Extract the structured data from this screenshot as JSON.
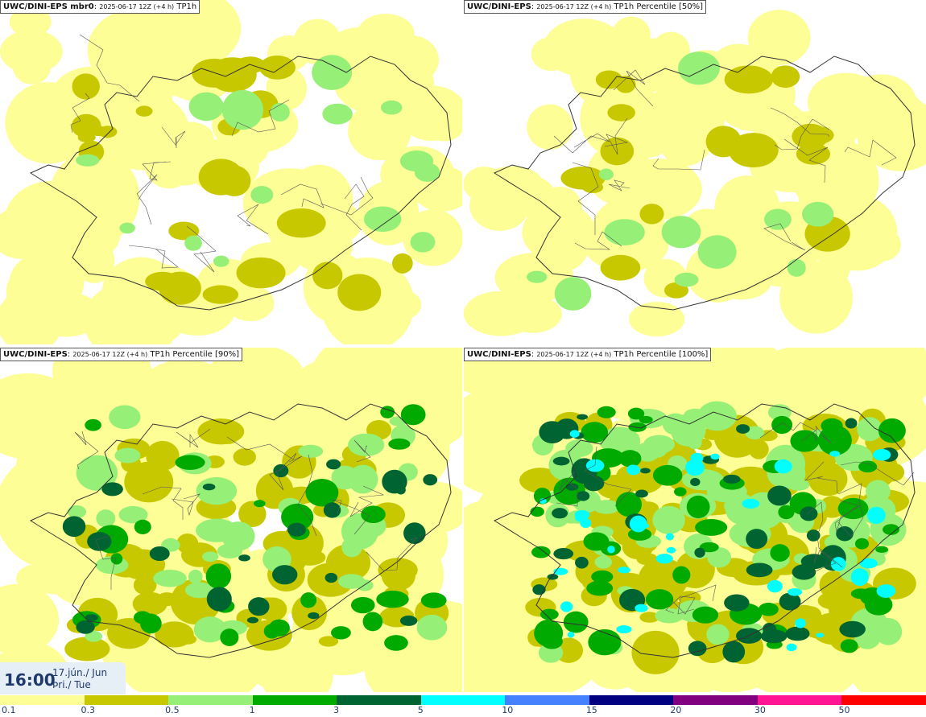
{
  "panels": [
    {
      "model": "UWC/DINI-EPS",
      "suffix": " mbr0",
      "meta": "2025-06-17 12Z (+4 h)",
      "field": "TP1h",
      "intensity": 0.9
    },
    {
      "model": "UWC/DINI-EPS",
      "suffix": "",
      "meta": "2025-06-17 12Z (+4 h)",
      "field": "TP1h Percentile [50%]",
      "intensity": 0.7
    },
    {
      "model": "UWC/DINI-EPS",
      "suffix": "",
      "meta": "2025-06-17 12Z (+4 h)",
      "field": "TP1h Percentile [90%]",
      "intensity": 1.6
    },
    {
      "model": "UWC/DINI-EPS",
      "suffix": "",
      "meta": "2025-06-17 12Z (+4 h)",
      "field": "TP1h Percentile [100%]",
      "intensity": 2.4
    }
  ],
  "valid_time": {
    "time": "16:00",
    "date_line1": "17.jún./ Jun",
    "date_line2": "Þri./ Tue"
  },
  "legend": {
    "ticks": [
      "0.1",
      "0.3",
      "0.5",
      "1",
      "3",
      "5",
      "10",
      "15",
      "20",
      "30",
      "50"
    ],
    "colors": [
      "#fefe96",
      "#c8c800",
      "#96f078",
      "#00aa00",
      "#006432",
      "#00ffff",
      "#4682ff",
      "#000080",
      "#800080",
      "#ff1493",
      "#ff0000"
    ]
  }
}
